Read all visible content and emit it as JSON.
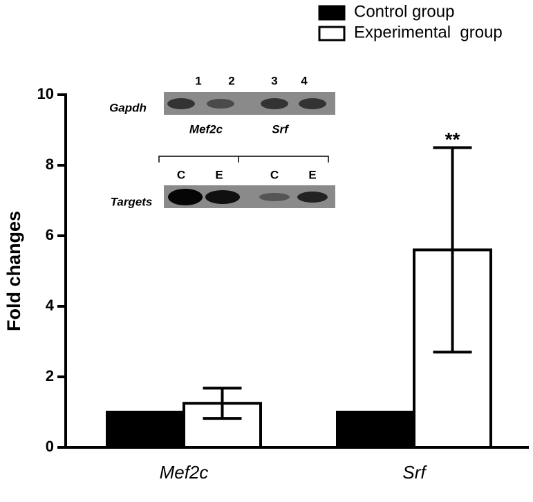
{
  "chart_data": {
    "type": "bar",
    "ylabel": "Fold changes",
    "categories": [
      "Mef2c",
      "Srf"
    ],
    "series": [
      {
        "name": "Control group",
        "color": "#000000",
        "values": [
          1.0,
          1.0
        ]
      },
      {
        "name": "Experimental  group",
        "color": "#ffffff",
        "values": [
          1.25,
          5.6
        ],
        "errors": [
          0.43,
          2.9
        ]
      }
    ],
    "annotations": [
      {
        "text": "**",
        "category": 1,
        "series": 1
      }
    ],
    "ylim": [
      0,
      10
    ],
    "yticks": [
      0,
      2,
      4,
      6,
      8,
      10
    ],
    "legend": "top-right",
    "inset": {
      "lanes": [
        "1",
        "2",
        "3",
        "4"
      ],
      "loading_label": "Gapdh",
      "genes": [
        "Mef2c",
        "Srf"
      ],
      "conditions": [
        "C",
        "E",
        "C",
        "E"
      ],
      "target_label": "Targets"
    }
  }
}
